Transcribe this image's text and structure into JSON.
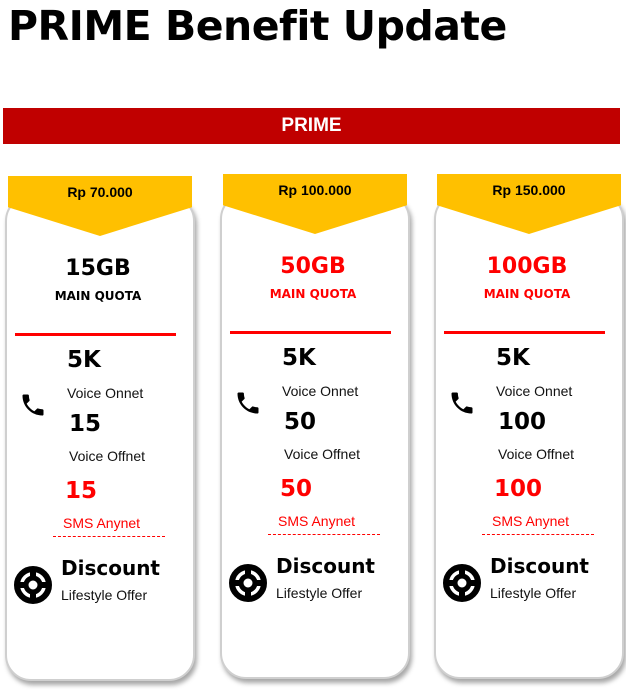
{
  "title": "PRIME Benefit Update",
  "banner": "PRIME",
  "plans": [
    {
      "price": "Rp 70.000",
      "quota": "15GB",
      "quota_label": "MAIN QUOTA",
      "quota_red": false,
      "onnet": "5K",
      "onnet_label": "Voice Onnet",
      "offnet": "15",
      "offnet_label": "Voice Offnet",
      "sms": "15",
      "sms_label": "SMS Anynet",
      "discount": "Discount",
      "discount_label": "Lifestyle Offer"
    },
    {
      "price": "Rp 100.000",
      "quota": "50GB",
      "quota_label": "MAIN QUOTA",
      "quota_red": true,
      "onnet": "5K",
      "onnet_label": "Voice Onnet",
      "offnet": "50",
      "offnet_label": "Voice Offnet",
      "sms": "50",
      "sms_label": "SMS Anynet",
      "discount": "Discount",
      "discount_label": "Lifestyle Offer"
    },
    {
      "price": "Rp 150.000",
      "quota": "100GB",
      "quota_label": "MAIN QUOTA",
      "quota_red": true,
      "onnet": "5K",
      "onnet_label": "Voice Onnet",
      "offnet": "100",
      "offnet_label": "Voice Offnet",
      "sms": "100",
      "sms_label": "SMS Anynet",
      "discount": "Discount",
      "discount_label": "Lifestyle Offer"
    }
  ],
  "colors": {
    "accent": "#c00000",
    "highlight": "#ff0000",
    "price_tag": "#ffc000"
  }
}
